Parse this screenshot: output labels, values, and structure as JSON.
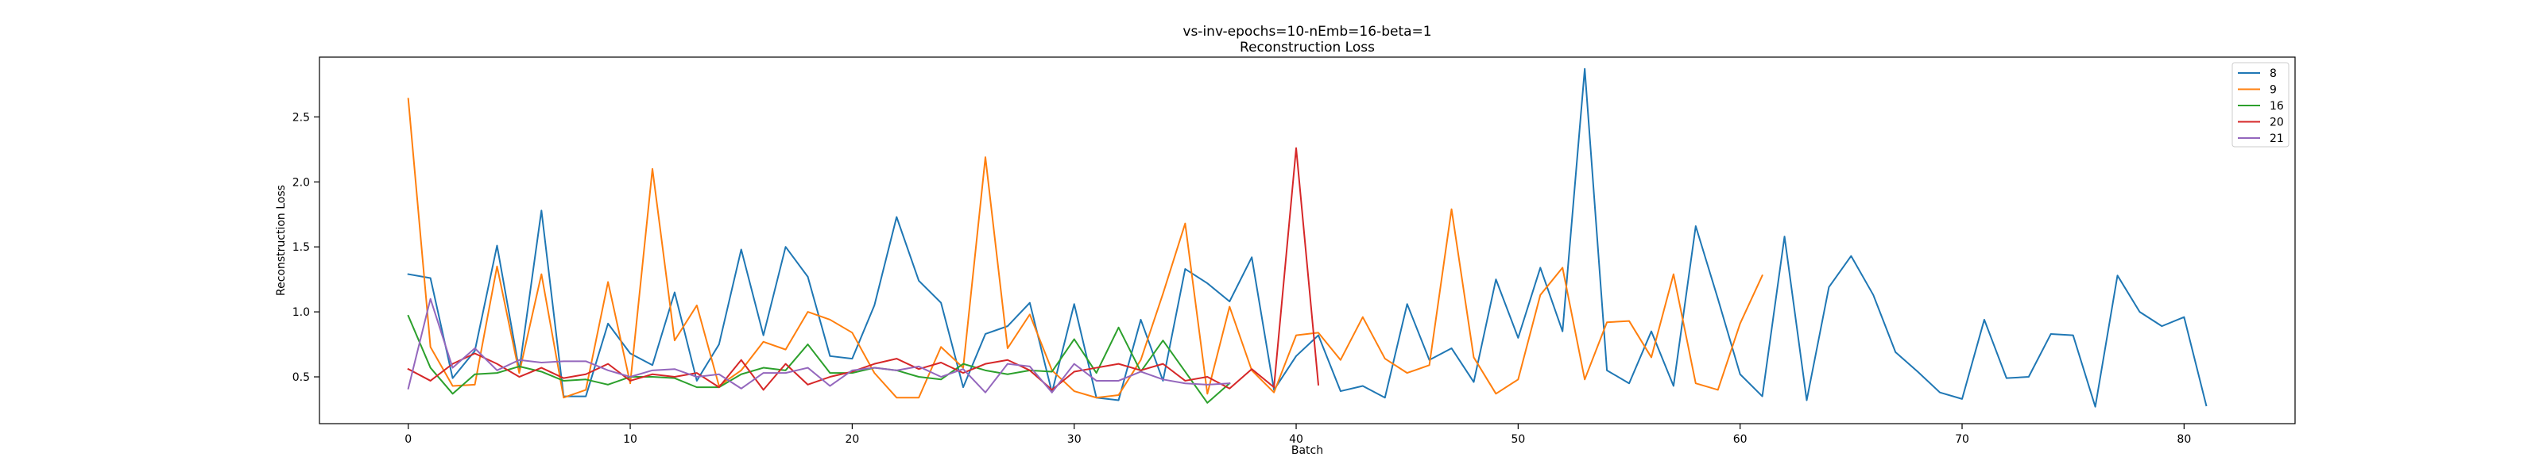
{
  "chart_data": {
    "type": "line",
    "title": "vs-inv-epochs=10-nEmb=16-beta=1",
    "subtitle": "Reconstruction Loss",
    "xlabel": "Batch",
    "ylabel": "Reconstruction Loss",
    "xlim": [
      -4,
      85
    ],
    "ylim": [
      0.14,
      2.96
    ],
    "xticks": [
      0,
      10,
      20,
      30,
      40,
      50,
      60,
      70,
      80
    ],
    "yticks": [
      0.5,
      1.0,
      1.5,
      2.0,
      2.5
    ],
    "ytick_labels": [
      "0.5",
      "1.0",
      "1.5",
      "2.0",
      "2.5"
    ],
    "grid": false,
    "legend_position": "top-right",
    "series": [
      {
        "name": "8",
        "color": "#1f77b4",
        "values": [
          1.29,
          1.26,
          0.49,
          0.7,
          1.51,
          0.55,
          1.78,
          0.35,
          0.35,
          0.91,
          0.68,
          0.59,
          1.15,
          0.47,
          0.75,
          1.48,
          0.82,
          1.5,
          1.27,
          0.66,
          0.64,
          1.05,
          1.73,
          1.24,
          1.07,
          0.42,
          0.83,
          0.89,
          1.07,
          0.38,
          1.06,
          0.34,
          0.32,
          0.94,
          0.47,
          1.33,
          1.22,
          1.08,
          1.42,
          0.4,
          0.66,
          0.82,
          0.39,
          0.43,
          0.34,
          1.06,
          0.63,
          0.72,
          0.46,
          1.25,
          0.8,
          1.34,
          0.85,
          2.87,
          0.55,
          0.45,
          0.85,
          0.43,
          1.66,
          1.1,
          0.52,
          0.35,
          1.58,
          0.32,
          1.19,
          1.43,
          1.13,
          0.69,
          0.54,
          0.38,
          0.33,
          0.94,
          0.49,
          0.5,
          0.83,
          0.82,
          0.27,
          1.28,
          1.0,
          0.89,
          0.96,
          0.28
        ]
      },
      {
        "name": "9",
        "color": "#ff7f0e",
        "values": [
          2.64,
          0.73,
          0.43,
          0.44,
          1.35,
          0.53,
          1.29,
          0.34,
          0.4,
          1.23,
          0.45,
          2.1,
          0.78,
          1.05,
          0.43,
          0.55,
          0.77,
          0.71,
          1.0,
          0.94,
          0.84,
          0.53,
          0.34,
          0.34,
          0.73,
          0.57,
          2.19,
          0.72,
          0.98,
          0.55,
          0.39,
          0.34,
          0.36,
          0.63,
          1.14,
          1.68,
          0.37,
          1.04,
          0.55,
          0.38,
          0.82,
          0.84,
          0.63,
          0.96,
          0.64,
          0.53,
          0.59,
          1.79,
          0.65,
          0.37,
          0.48,
          1.13,
          1.34,
          0.48,
          0.92,
          0.93,
          0.65,
          1.29,
          0.45,
          0.4,
          0.91,
          1.28
        ]
      },
      {
        "name": "16",
        "color": "#2ca02c",
        "values": [
          0.97,
          0.57,
          0.37,
          0.52,
          0.53,
          0.58,
          0.54,
          0.47,
          0.48,
          0.44,
          0.5,
          0.5,
          0.49,
          0.42,
          0.42,
          0.52,
          0.57,
          0.55,
          0.75,
          0.53,
          0.53,
          0.57,
          0.55,
          0.5,
          0.48,
          0.6,
          0.55,
          0.52,
          0.55,
          0.54,
          0.79,
          0.53,
          0.88,
          0.54,
          0.78,
          0.54,
          0.3,
          0.45
        ]
      },
      {
        "name": "20",
        "color": "#d62728",
        "values": [
          0.56,
          0.47,
          0.6,
          0.68,
          0.6,
          0.5,
          0.57,
          0.49,
          0.52,
          0.6,
          0.47,
          0.52,
          0.5,
          0.53,
          0.42,
          0.63,
          0.4,
          0.6,
          0.44,
          0.5,
          0.54,
          0.6,
          0.64,
          0.56,
          0.61,
          0.53,
          0.6,
          0.63,
          0.55,
          0.4,
          0.54,
          0.57,
          0.6,
          0.55,
          0.6,
          0.47,
          0.5,
          0.41,
          0.56,
          0.42,
          2.26,
          0.44
        ]
      },
      {
        "name": "21",
        "color": "#9467bd",
        "values": [
          0.41,
          1.1,
          0.57,
          0.72,
          0.55,
          0.63,
          0.61,
          0.62,
          0.62,
          0.55,
          0.5,
          0.55,
          0.56,
          0.5,
          0.52,
          0.41,
          0.53,
          0.53,
          0.57,
          0.43,
          0.55,
          0.57,
          0.55,
          0.58,
          0.5,
          0.56,
          0.38,
          0.6,
          0.58,
          0.38,
          0.6,
          0.47,
          0.47,
          0.54,
          0.48,
          0.45,
          0.44,
          0.45
        ]
      }
    ]
  }
}
